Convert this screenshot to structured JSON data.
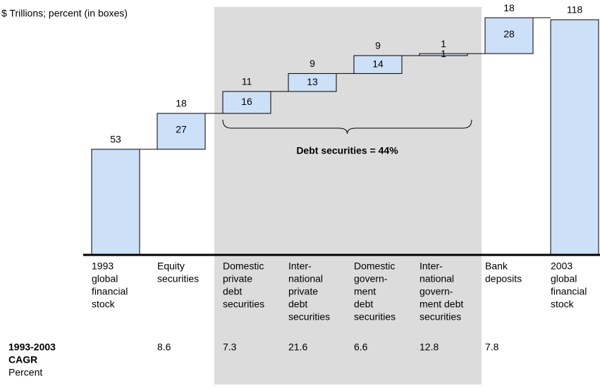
{
  "chart_data": {
    "type": "waterfall",
    "title": "$ Trillions; percent (in boxes)",
    "categories": [
      [
        "1993",
        "global",
        "financial",
        "stock"
      ],
      [
        "Equity",
        "securities"
      ],
      [
        "Domestic",
        "private",
        "debt",
        "securities"
      ],
      [
        "Inter-",
        "national",
        "private",
        "debt",
        "securities"
      ],
      [
        "Domestic",
        "govern-",
        "ment",
        "debt",
        "securities"
      ],
      [
        "Inter-",
        "national",
        "govern-",
        "ment debt",
        "securities"
      ],
      [
        "Bank",
        "deposits"
      ],
      [
        "2003",
        "global",
        "financial",
        "stock"
      ]
    ],
    "measure": [
      "total",
      "relative",
      "relative",
      "relative",
      "relative",
      "relative",
      "relative",
      "total"
    ],
    "values": [
      53,
      18,
      11,
      9,
      9,
      1,
      18,
      118
    ],
    "shares": [
      null,
      27,
      16,
      13,
      14,
      1,
      28,
      null
    ],
    "color": "#cce0f8",
    "ylim": [
      0,
      118
    ],
    "highlight": [
      2,
      5
    ],
    "annotation": "Debt securities = 44%",
    "cagr_label": [
      "1993-2003",
      "CAGR"
    ],
    "cagr_unit": "Percent",
    "cagr": [
      null,
      8.6,
      7.3,
      21.6,
      6.6,
      12.8,
      7.8,
      null
    ]
  }
}
